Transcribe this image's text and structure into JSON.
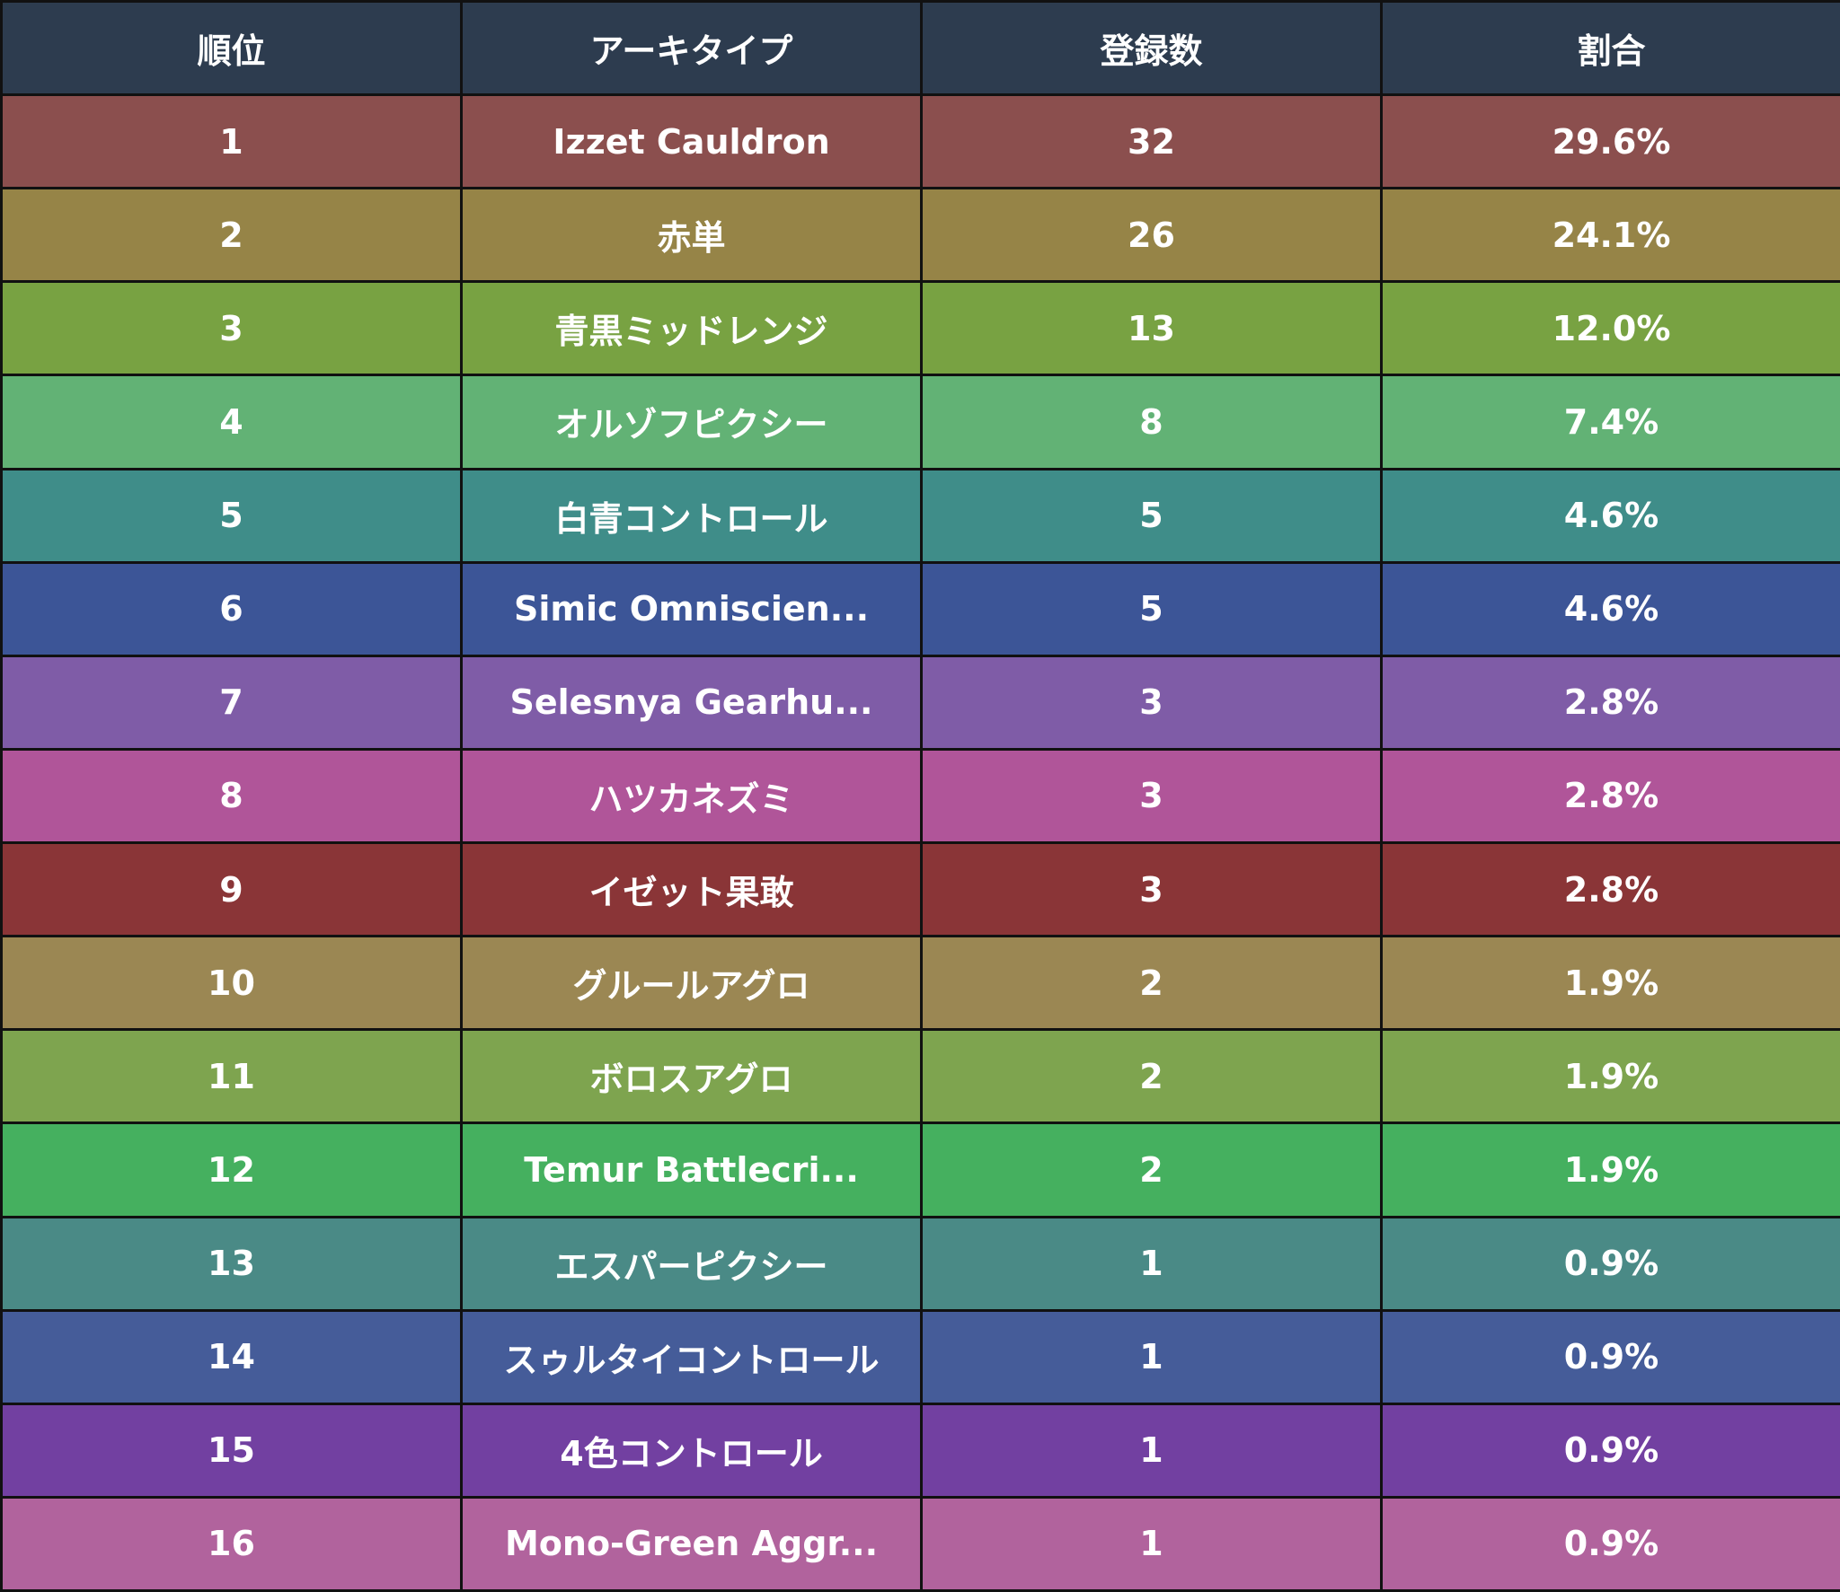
{
  "chart_data": {
    "type": "table",
    "columns": [
      "順位",
      "アーキタイプ",
      "登録数",
      "割合"
    ],
    "header_color": "#2d3c4f",
    "rows": [
      {
        "rank": "1",
        "archetype": "Izzet Cauldron",
        "count": 32,
        "share": "29.6%",
        "color": "#8b4f4e"
      },
      {
        "rank": "2",
        "archetype": "赤単",
        "count": 26,
        "share": "24.1%",
        "color": "#968447"
      },
      {
        "rank": "3",
        "archetype": "青黒ミッドレンジ",
        "count": 13,
        "share": "12.0%",
        "color": "#78a242"
      },
      {
        "rank": "4",
        "archetype": "オルゾフピクシー",
        "count": 8,
        "share": "7.4%",
        "color": "#62b275"
      },
      {
        "rank": "5",
        "archetype": "白青コントロール",
        "count": 5,
        "share": "4.6%",
        "color": "#3f8d89"
      },
      {
        "rank": "6",
        "archetype": "Simic Omniscien...",
        "count": 5,
        "share": "4.6%",
        "color": "#3c5597"
      },
      {
        "rank": "7",
        "archetype": "Selesnya Gearhu...",
        "count": 3,
        "share": "2.8%",
        "color": "#7f5ca7"
      },
      {
        "rank": "8",
        "archetype": "ハツカネズミ",
        "count": 3,
        "share": "2.8%",
        "color": "#b05599"
      },
      {
        "rank": "9",
        "archetype": "イゼット果敢",
        "count": 3,
        "share": "2.8%",
        "color": "#8a3537"
      },
      {
        "rank": "10",
        "archetype": "グルールアグロ",
        "count": 2,
        "share": "1.9%",
        "color": "#9b8753"
      },
      {
        "rank": "11",
        "archetype": "ボロスアグロ",
        "count": 2,
        "share": "1.9%",
        "color": "#7ea44f"
      },
      {
        "rank": "12",
        "archetype": "Temur Battlecri...",
        "count": 2,
        "share": "1.9%",
        "color": "#45b05f"
      },
      {
        "rank": "13",
        "archetype": "エスパーピクシー",
        "count": 1,
        "share": "0.9%",
        "color": "#4a8a86"
      },
      {
        "rank": "14",
        "archetype": "スゥルタイコントロール",
        "count": 1,
        "share": "0.9%",
        "color": "#455c99"
      },
      {
        "rank": "15",
        "archetype": "4色コントロール",
        "count": 1,
        "share": "0.9%",
        "color": "#7240a1"
      },
      {
        "rank": "16",
        "archetype": "Mono-Green Aggr...",
        "count": 1,
        "share": "0.9%",
        "color": "#b1639d"
      }
    ]
  }
}
